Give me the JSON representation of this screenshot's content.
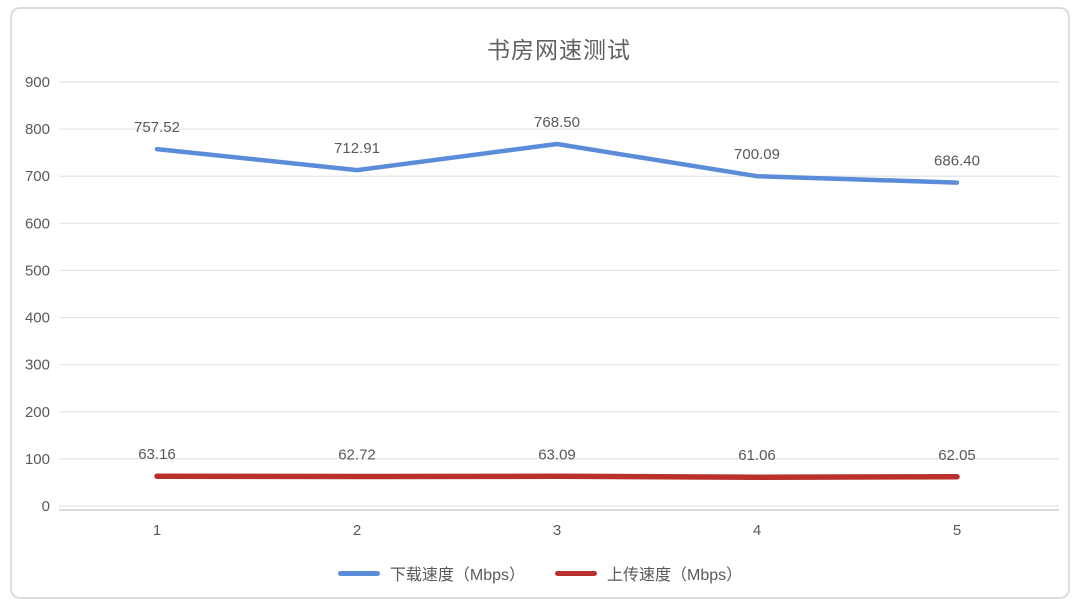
{
  "chart_data": {
    "type": "line",
    "title": "书房网速测试",
    "categories": [
      "1",
      "2",
      "3",
      "4",
      "5"
    ],
    "series": [
      {
        "key": "download-speed",
        "name": "下载速度（Mbps）",
        "color": "#5b8cd9",
        "values": [
          757.52,
          712.91,
          768.5,
          700.09,
          686.4
        ],
        "stroke_width": 4.5
      },
      {
        "key": "upload-speed",
        "name": "上传速度（Mbps）",
        "color": "#bb2f2c",
        "values": [
          63.16,
          62.72,
          63.09,
          61.06,
          62.05
        ],
        "stroke_width": 5.5
      }
    ],
    "yticks": [
      "0",
      "100",
      "200",
      "300",
      "400",
      "500",
      "600",
      "700",
      "800",
      "900"
    ],
    "ylim": [
      0,
      900
    ],
    "grid": true,
    "legend_position": "bottom",
    "colors": {
      "text": "#595959",
      "gridline": "#e4e4e4",
      "axis_line": "#cfcfcf",
      "frame_border": "#dcdcdc",
      "background": "#ffffff"
    }
  }
}
